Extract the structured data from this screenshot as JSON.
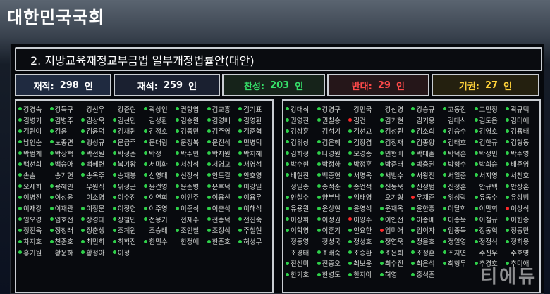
{
  "header": {
    "title": "대한민국국회"
  },
  "bill": {
    "title": "2. 지방교육재정교부금법 일부개정법률안(대안)"
  },
  "summary": {
    "enrolled_label": "재적:",
    "enrolled_value": "298",
    "enrolled_unit": "인",
    "present_label": "재석:",
    "present_value": "259",
    "present_unit": "인",
    "yes_label": "찬성:",
    "yes_value": "203",
    "yes_unit": "인",
    "no_label": "반대:",
    "no_value": "29",
    "no_unit": "인",
    "abstain_label": "기권:",
    "abstain_value": "27",
    "abstain_unit": "인"
  },
  "vote_colors": {
    "yes": "#2fd24a",
    "no": "#ff2a2a",
    "abstain": "#ffd21a",
    "absent": "#777777"
  },
  "left_members": [
    {
      "name": "강경숙",
      "vote": "yes"
    },
    {
      "name": "강득구",
      "vote": "yes"
    },
    {
      "name": "강선우",
      "vote": "absent"
    },
    {
      "name": "강준현",
      "vote": "absent"
    },
    {
      "name": "곽상언",
      "vote": "yes"
    },
    {
      "name": "권향엽",
      "vote": "yes"
    },
    {
      "name": "김교흥",
      "vote": "yes"
    },
    {
      "name": "김기표",
      "vote": "yes"
    },
    {
      "name": "김병기",
      "vote": "yes"
    },
    {
      "name": "김병주",
      "vote": "yes"
    },
    {
      "name": "김상욱",
      "vote": "yes"
    },
    {
      "name": "김선민",
      "vote": "yes"
    },
    {
      "name": "김성환",
      "vote": "absent"
    },
    {
      "name": "김승원",
      "vote": "yes"
    },
    {
      "name": "김영배",
      "vote": "yes"
    },
    {
      "name": "김영환",
      "vote": "yes"
    },
    {
      "name": "김원이",
      "vote": "yes"
    },
    {
      "name": "김윤",
      "vote": "yes"
    },
    {
      "name": "김윤덕",
      "vote": "yes"
    },
    {
      "name": "김재원",
      "vote": "yes"
    },
    {
      "name": "김정호",
      "vote": "yes"
    },
    {
      "name": "김종민",
      "vote": "yes"
    },
    {
      "name": "김주영",
      "vote": "yes"
    },
    {
      "name": "김준혁",
      "vote": "yes"
    },
    {
      "name": "남인순",
      "vote": "yes"
    },
    {
      "name": "노종면",
      "vote": "yes"
    },
    {
      "name": "맹성규",
      "vote": "yes"
    },
    {
      "name": "문금주",
      "vote": "yes"
    },
    {
      "name": "문대림",
      "vote": "yes"
    },
    {
      "name": "문정복",
      "vote": "yes"
    },
    {
      "name": "문진석",
      "vote": "yes"
    },
    {
      "name": "민병덕",
      "vote": "yes"
    },
    {
      "name": "박범계",
      "vote": "yes"
    },
    {
      "name": "박상혁",
      "vote": "yes"
    },
    {
      "name": "박선원",
      "vote": "yes"
    },
    {
      "name": "박성준",
      "vote": "yes"
    },
    {
      "name": "박정",
      "vote": "yes"
    },
    {
      "name": "박주민",
      "vote": "yes"
    },
    {
      "name": "박지원",
      "vote": "yes"
    },
    {
      "name": "박지혜",
      "vote": "yes"
    },
    {
      "name": "백선희",
      "vote": "yes"
    },
    {
      "name": "백승아",
      "vote": "yes"
    },
    {
      "name": "백혜련",
      "vote": "yes"
    },
    {
      "name": "복기왕",
      "vote": "yes"
    },
    {
      "name": "서미화",
      "vote": "yes"
    },
    {
      "name": "서삼석",
      "vote": "yes"
    },
    {
      "name": "서영교",
      "vote": "yes"
    },
    {
      "name": "서영석",
      "vote": "yes"
    },
    {
      "name": "손솔",
      "vote": "yes"
    },
    {
      "name": "송기헌",
      "vote": "absent"
    },
    {
      "name": "송옥주",
      "vote": "yes"
    },
    {
      "name": "송재봉",
      "vote": "yes"
    },
    {
      "name": "신영대",
      "vote": "yes"
    },
    {
      "name": "신장식",
      "vote": "yes"
    },
    {
      "name": "안도걸",
      "vote": "yes"
    },
    {
      "name": "안호영",
      "vote": "yes"
    },
    {
      "name": "오세희",
      "vote": "yes"
    },
    {
      "name": "용혜인",
      "vote": "yes"
    },
    {
      "name": "우원식",
      "vote": "absent"
    },
    {
      "name": "위성곤",
      "vote": "yes"
    },
    {
      "name": "윤건영",
      "vote": "yes"
    },
    {
      "name": "윤준병",
      "vote": "yes"
    },
    {
      "name": "윤후덕",
      "vote": "yes"
    },
    {
      "name": "이강일",
      "vote": "yes"
    },
    {
      "name": "이병진",
      "vote": "yes"
    },
    {
      "name": "이성윤",
      "vote": "yes"
    },
    {
      "name": "이소영",
      "vote": "absent"
    },
    {
      "name": "이수진",
      "vote": "yes"
    },
    {
      "name": "이연희",
      "vote": "yes"
    },
    {
      "name": "이언주",
      "vote": "yes"
    },
    {
      "name": "이용선",
      "vote": "yes"
    },
    {
      "name": "이용우",
      "vote": "yes"
    },
    {
      "name": "이재강",
      "vote": "yes"
    },
    {
      "name": "이재관",
      "vote": "yes"
    },
    {
      "name": "이정문",
      "vote": "yes"
    },
    {
      "name": "이정헌",
      "vote": "yes"
    },
    {
      "name": "이주영",
      "vote": "yes"
    },
    {
      "name": "이준석",
      "vote": "yes"
    },
    {
      "name": "이춘석",
      "vote": "yes"
    },
    {
      "name": "이해식",
      "vote": "yes"
    },
    {
      "name": "임오경",
      "vote": "yes"
    },
    {
      "name": "임호선",
      "vote": "yes"
    },
    {
      "name": "장경태",
      "vote": "yes"
    },
    {
      "name": "장철민",
      "vote": "yes"
    },
    {
      "name": "전용기",
      "vote": "yes"
    },
    {
      "name": "전재수",
      "vote": "absent"
    },
    {
      "name": "전종덕",
      "vote": "yes"
    },
    {
      "name": "전진숙",
      "vote": "yes"
    },
    {
      "name": "정진욱",
      "vote": "yes"
    },
    {
      "name": "정청래",
      "vote": "yes"
    },
    {
      "name": "정춘생",
      "vote": "yes"
    },
    {
      "name": "조계원",
      "vote": "yes"
    },
    {
      "name": "조승래",
      "vote": "absent"
    },
    {
      "name": "조인철",
      "vote": "yes"
    },
    {
      "name": "조정식",
      "vote": "yes"
    },
    {
      "name": "주철현",
      "vote": "yes"
    },
    {
      "name": "차지호",
      "vote": "yes"
    },
    {
      "name": "천준호",
      "vote": "yes"
    },
    {
      "name": "최민희",
      "vote": "yes"
    },
    {
      "name": "최혁진",
      "vote": "yes"
    },
    {
      "name": "한민수",
      "vote": "yes"
    },
    {
      "name": "한정애",
      "vote": "absent"
    },
    {
      "name": "한준호",
      "vote": "yes"
    },
    {
      "name": "허성무",
      "vote": "yes"
    },
    {
      "name": "홍기원",
      "vote": "yes"
    },
    {
      "name": "황운하",
      "vote": "absent"
    },
    {
      "name": "황정아",
      "vote": "yes"
    },
    {
      "name": "이정",
      "vote": "yes"
    }
  ],
  "right_members": [
    {
      "name": "강대식",
      "vote": "yes"
    },
    {
      "name": "강명구",
      "vote": "yes"
    },
    {
      "name": "강민국",
      "vote": "absent"
    },
    {
      "name": "강선영",
      "vote": "absent"
    },
    {
      "name": "강승규",
      "vote": "yes"
    },
    {
      "name": "고동진",
      "vote": "yes"
    },
    {
      "name": "고민정",
      "vote": "yes"
    },
    {
      "name": "곽규택",
      "vote": "yes"
    },
    {
      "name": "권영진",
      "vote": "yes"
    },
    {
      "name": "권칠승",
      "vote": "yes"
    },
    {
      "name": "김건",
      "vote": "no"
    },
    {
      "name": "김기현",
      "vote": "yes"
    },
    {
      "name": "김기웅",
      "vote": "absent"
    },
    {
      "name": "김대식",
      "vote": "absent"
    },
    {
      "name": "김도읍",
      "vote": "yes"
    },
    {
      "name": "김미애",
      "vote": "yes"
    },
    {
      "name": "김상훈",
      "vote": "yes"
    },
    {
      "name": "김석기",
      "vote": "absent"
    },
    {
      "name": "김선교",
      "vote": "yes"
    },
    {
      "name": "김성원",
      "vote": "yes"
    },
    {
      "name": "김소희",
      "vote": "yes"
    },
    {
      "name": "김승수",
      "vote": "yes"
    },
    {
      "name": "김영호",
      "vote": "yes"
    },
    {
      "name": "김용태",
      "vote": "yes"
    },
    {
      "name": "김위상",
      "vote": "yes"
    },
    {
      "name": "김은혜",
      "vote": "yes"
    },
    {
      "name": "김장겸",
      "vote": "yes"
    },
    {
      "name": "김정재",
      "vote": "yes"
    },
    {
      "name": "김종양",
      "vote": "yes"
    },
    {
      "name": "김태호",
      "vote": "yes"
    },
    {
      "name": "김한규",
      "vote": "yes"
    },
    {
      "name": "김형동",
      "vote": "yes"
    },
    {
      "name": "김희정",
      "vote": "yes"
    },
    {
      "name": "나경원",
      "vote": "yes"
    },
    {
      "name": "모경종",
      "vote": "yes"
    },
    {
      "name": "민형배",
      "vote": "yes"
    },
    {
      "name": "박대출",
      "vote": "yes"
    },
    {
      "name": "박덕흠",
      "vote": "yes"
    },
    {
      "name": "박성민",
      "vote": "yes"
    },
    {
      "name": "박수영",
      "vote": "yes"
    },
    {
      "name": "박수현",
      "vote": "yes"
    },
    {
      "name": "박정하",
      "vote": "yes"
    },
    {
      "name": "박정훈",
      "vote": "yes"
    },
    {
      "name": "박준태",
      "vote": "yes"
    },
    {
      "name": "박충권",
      "vote": "yes"
    },
    {
      "name": "박형수",
      "vote": "yes"
    },
    {
      "name": "박희승",
      "vote": "yes"
    },
    {
      "name": "배준영",
      "vote": "yes"
    },
    {
      "name": "배현진",
      "vote": "yes"
    },
    {
      "name": "백종헌",
      "vote": "yes"
    },
    {
      "name": "서명옥",
      "vote": "yes"
    },
    {
      "name": "서범수",
      "vote": "yes"
    },
    {
      "name": "서왕진",
      "vote": "yes"
    },
    {
      "name": "서일준",
      "vote": "yes"
    },
    {
      "name": "서지영",
      "vote": "yes"
    },
    {
      "name": "서천호",
      "vote": "yes"
    },
    {
      "name": "성일종",
      "vote": "absent"
    },
    {
      "name": "송석준",
      "vote": "yes"
    },
    {
      "name": "송언석",
      "vote": "yes"
    },
    {
      "name": "신동욱",
      "vote": "yes"
    },
    {
      "name": "신성범",
      "vote": "yes"
    },
    {
      "name": "신정훈",
      "vote": "yes"
    },
    {
      "name": "안규백",
      "vote": "absent"
    },
    {
      "name": "안상훈",
      "vote": "yes"
    },
    {
      "name": "안철수",
      "vote": "yes"
    },
    {
      "name": "양부남",
      "vote": "yes"
    },
    {
      "name": "엄태영",
      "vote": "yes"
    },
    {
      "name": "오기형",
      "vote": "absent"
    },
    {
      "name": "우재준",
      "vote": "no"
    },
    {
      "name": "위성락",
      "vote": "yes"
    },
    {
      "name": "유동수",
      "vote": "yes"
    },
    {
      "name": "유상범",
      "vote": "yes"
    },
    {
      "name": "유용원",
      "vote": "yes"
    },
    {
      "name": "윤상현",
      "vote": "yes"
    },
    {
      "name": "윤영석",
      "vote": "yes"
    },
    {
      "name": "윤재옥",
      "vote": "yes"
    },
    {
      "name": "윤한홍",
      "vote": "yes"
    },
    {
      "name": "이달희",
      "vote": "yes"
    },
    {
      "name": "이만희",
      "vote": "yes"
    },
    {
      "name": "이상식",
      "vote": "no"
    },
    {
      "name": "이상휘",
      "vote": "yes"
    },
    {
      "name": "이성권",
      "vote": "yes"
    },
    {
      "name": "이양수",
      "vote": "no"
    },
    {
      "name": "이인선",
      "vote": "yes"
    },
    {
      "name": "이종배",
      "vote": "yes"
    },
    {
      "name": "이종욱",
      "vote": "yes"
    },
    {
      "name": "이철규",
      "vote": "yes"
    },
    {
      "name": "이헌승",
      "vote": "yes"
    },
    {
      "name": "이학영",
      "vote": "yes"
    },
    {
      "name": "이훈기",
      "vote": "yes"
    },
    {
      "name": "인요한",
      "vote": "yes"
    },
    {
      "name": "임미애",
      "vote": "no"
    },
    {
      "name": "임이자",
      "vote": "yes"
    },
    {
      "name": "임종득",
      "vote": "yes"
    },
    {
      "name": "장동혁",
      "vote": "yes"
    },
    {
      "name": "정동만",
      "vote": "yes"
    },
    {
      "name": "정동영",
      "vote": "absent"
    },
    {
      "name": "정성국",
      "vote": "absent"
    },
    {
      "name": "정성호",
      "vote": "yes"
    },
    {
      "name": "정연욱",
      "vote": "yes"
    },
    {
      "name": "정을호",
      "vote": "yes"
    },
    {
      "name": "정일영",
      "vote": "yes"
    },
    {
      "name": "정점식",
      "vote": "yes"
    },
    {
      "name": "정희용",
      "vote": "yes"
    },
    {
      "name": "조경태",
      "vote": "absent"
    },
    {
      "name": "조배숙",
      "vote": "yes"
    },
    {
      "name": "조승환",
      "vote": "yes"
    },
    {
      "name": "조은희",
      "vote": "yes"
    },
    {
      "name": "조정훈",
      "vote": "yes"
    },
    {
      "name": "조지연",
      "vote": "yes"
    },
    {
      "name": "주진우",
      "vote": "absent"
    },
    {
      "name": "주호영",
      "vote": "absent"
    },
    {
      "name": "진선미",
      "vote": "yes"
    },
    {
      "name": "진종오",
      "vote": "yes"
    },
    {
      "name": "최보윤",
      "vote": "yes"
    },
    {
      "name": "최수진",
      "vote": "yes"
    },
    {
      "name": "최은석",
      "vote": "yes"
    },
    {
      "name": "최형두",
      "vote": "yes"
    },
    {
      "name": "추경호",
      "vote": "yes"
    },
    {
      "name": "추미애",
      "vote": "yes"
    },
    {
      "name": "한기호",
      "vote": "yes"
    },
    {
      "name": "한병도",
      "vote": "yes"
    },
    {
      "name": "한지아",
      "vote": "yes"
    },
    {
      "name": "허영",
      "vote": "yes"
    },
    {
      "name": "홍석준",
      "vote": "yes"
    }
  ],
  "watermark": {
    "text": "티에듀"
  }
}
